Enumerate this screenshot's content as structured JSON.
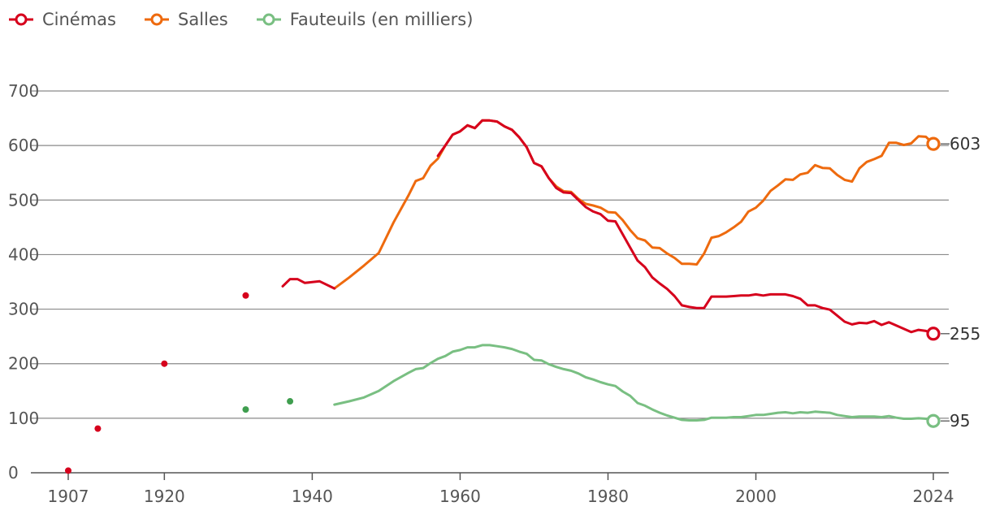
{
  "chart_data": {
    "type": "line",
    "title": "",
    "xlabel": "",
    "ylabel": "",
    "xlim": [
      1907,
      2024
    ],
    "ylim": [
      0,
      700
    ],
    "y_ticks": [
      "0",
      "100",
      "200",
      "300",
      "400",
      "500",
      "600",
      "700"
    ],
    "x_ticks": [
      "1907",
      "1920",
      "1940",
      "1960",
      "1980",
      "2000",
      "2024"
    ],
    "grid": "horizontal",
    "legend_position": "top-left",
    "colors": {
      "cinemas": "#d6001c",
      "salles": "#ee6a0e",
      "fauteuils": "#79bf82",
      "fauteuils_dot": "#3f9e4f",
      "grid": "#8a8a8a",
      "axis": "#555555"
    },
    "series": [
      {
        "key": "cinemas",
        "name": "Cinémas",
        "end_label": "255",
        "dots": [
          [
            1907,
            4
          ],
          [
            1911,
            81
          ],
          [
            1920,
            200
          ],
          [
            1931,
            325
          ]
        ],
        "line": [
          [
            1936,
            342
          ],
          [
            1937,
            355
          ],
          [
            1938,
            355
          ],
          [
            1939,
            348
          ],
          [
            1941,
            351
          ],
          [
            1943,
            338
          ],
          [
            1957,
            581
          ],
          [
            1958,
            600
          ],
          [
            1959,
            620
          ],
          [
            1960,
            626
          ],
          [
            1961,
            637
          ],
          [
            1962,
            632
          ],
          [
            1963,
            646
          ],
          [
            1964,
            646
          ],
          [
            1965,
            644
          ],
          [
            1966,
            635
          ],
          [
            1967,
            629
          ],
          [
            1968,
            615
          ],
          [
            1969,
            597
          ],
          [
            1970,
            568
          ],
          [
            1971,
            562
          ],
          [
            1972,
            540
          ],
          [
            1973,
            522
          ],
          [
            1974,
            514
          ],
          [
            1975,
            513
          ],
          [
            1976,
            500
          ],
          [
            1977,
            487
          ],
          [
            1978,
            479
          ],
          [
            1979,
            474
          ],
          [
            1980,
            462
          ],
          [
            1981,
            461
          ],
          [
            1982,
            437
          ],
          [
            1983,
            413
          ],
          [
            1984,
            389
          ],
          [
            1985,
            377
          ],
          [
            1986,
            358
          ],
          [
            1987,
            347
          ],
          [
            1988,
            337
          ],
          [
            1989,
            324
          ],
          [
            1990,
            307
          ],
          [
            1991,
            304
          ],
          [
            1992,
            302
          ],
          [
            1993,
            302
          ],
          [
            1994,
            323
          ],
          [
            1995,
            323
          ],
          [
            1996,
            323
          ],
          [
            1997,
            324
          ],
          [
            1998,
            325
          ],
          [
            1999,
            325
          ],
          [
            2000,
            327
          ],
          [
            2001,
            325
          ],
          [
            2002,
            327
          ],
          [
            2003,
            327
          ],
          [
            2004,
            327
          ],
          [
            2005,
            324
          ],
          [
            2006,
            319
          ],
          [
            2007,
            307
          ],
          [
            2008,
            307
          ],
          [
            2009,
            302
          ],
          [
            2010,
            299
          ],
          [
            2011,
            288
          ],
          [
            2012,
            277
          ],
          [
            2013,
            272
          ],
          [
            2014,
            275
          ],
          [
            2015,
            274
          ],
          [
            2016,
            278
          ],
          [
            2017,
            271
          ],
          [
            2018,
            276
          ],
          [
            2019,
            270
          ],
          [
            2020,
            264
          ],
          [
            2021,
            258
          ],
          [
            2022,
            262
          ],
          [
            2023,
            260
          ],
          [
            2024,
            255
          ]
        ]
      },
      {
        "key": "salles",
        "name": "Salles",
        "end_label": "603",
        "dots": [],
        "line": [
          [
            1943,
            338
          ],
          [
            1945,
            358
          ],
          [
            1947,
            380
          ],
          [
            1949,
            403
          ],
          [
            1951,
            459
          ],
          [
            1953,
            508
          ],
          [
            1954,
            535
          ],
          [
            1955,
            540
          ],
          [
            1956,
            563
          ],
          [
            1957,
            576
          ],
          [
            1958,
            600
          ],
          [
            1959,
            620
          ],
          [
            1960,
            626
          ],
          [
            1961,
            637
          ],
          [
            1962,
            632
          ],
          [
            1963,
            646
          ],
          [
            1964,
            646
          ],
          [
            1965,
            644
          ],
          [
            1966,
            635
          ],
          [
            1967,
            629
          ],
          [
            1968,
            615
          ],
          [
            1969,
            597
          ],
          [
            1970,
            568
          ],
          [
            1971,
            562
          ],
          [
            1972,
            540
          ],
          [
            1973,
            525
          ],
          [
            1974,
            516
          ],
          [
            1975,
            515
          ],
          [
            1976,
            502
          ],
          [
            1977,
            493
          ],
          [
            1978,
            490
          ],
          [
            1979,
            486
          ],
          [
            1980,
            478
          ],
          [
            1981,
            477
          ],
          [
            1982,
            463
          ],
          [
            1983,
            445
          ],
          [
            1984,
            430
          ],
          [
            1985,
            426
          ],
          [
            1986,
            413
          ],
          [
            1987,
            412
          ],
          [
            1988,
            402
          ],
          [
            1989,
            394
          ],
          [
            1990,
            383
          ],
          [
            1991,
            383
          ],
          [
            1992,
            382
          ],
          [
            1993,
            402
          ],
          [
            1994,
            431
          ],
          [
            1995,
            434
          ],
          [
            1996,
            441
          ],
          [
            1997,
            450
          ],
          [
            1998,
            460
          ],
          [
            1999,
            479
          ],
          [
            2000,
            486
          ],
          [
            2001,
            499
          ],
          [
            2002,
            517
          ],
          [
            2003,
            527
          ],
          [
            2004,
            538
          ],
          [
            2005,
            537
          ],
          [
            2006,
            547
          ],
          [
            2007,
            550
          ],
          [
            2008,
            564
          ],
          [
            2009,
            559
          ],
          [
            2010,
            558
          ],
          [
            2011,
            546
          ],
          [
            2012,
            537
          ],
          [
            2013,
            534
          ],
          [
            2014,
            558
          ],
          [
            2015,
            570
          ],
          [
            2016,
            575
          ],
          [
            2017,
            581
          ],
          [
            2018,
            605
          ],
          [
            2019,
            605
          ],
          [
            2020,
            601
          ],
          [
            2021,
            604
          ],
          [
            2022,
            617
          ],
          [
            2023,
            616
          ],
          [
            2024,
            603
          ]
        ]
      },
      {
        "key": "fauteuils",
        "name": "Fauteuils (en milliers)",
        "end_label": "95",
        "dots": [
          [
            1931,
            116
          ],
          [
            1937,
            131
          ]
        ],
        "line": [
          [
            1943,
            125
          ],
          [
            1945,
            131
          ],
          [
            1947,
            138
          ],
          [
            1949,
            150
          ],
          [
            1951,
            168
          ],
          [
            1953,
            183
          ],
          [
            1954,
            190
          ],
          [
            1955,
            192
          ],
          [
            1956,
            201
          ],
          [
            1957,
            209
          ],
          [
            1958,
            214
          ],
          [
            1959,
            222
          ],
          [
            1960,
            225
          ],
          [
            1961,
            230
          ],
          [
            1962,
            230
          ],
          [
            1963,
            234
          ],
          [
            1964,
            234
          ],
          [
            1965,
            232
          ],
          [
            1966,
            230
          ],
          [
            1967,
            227
          ],
          [
            1968,
            222
          ],
          [
            1969,
            218
          ],
          [
            1970,
            207
          ],
          [
            1971,
            206
          ],
          [
            1972,
            199
          ],
          [
            1973,
            194
          ],
          [
            1974,
            190
          ],
          [
            1975,
            187
          ],
          [
            1976,
            182
          ],
          [
            1977,
            175
          ],
          [
            1978,
            171
          ],
          [
            1979,
            166
          ],
          [
            1980,
            162
          ],
          [
            1981,
            159
          ],
          [
            1982,
            149
          ],
          [
            1983,
            141
          ],
          [
            1984,
            128
          ],
          [
            1985,
            123
          ],
          [
            1986,
            116
          ],
          [
            1987,
            110
          ],
          [
            1988,
            105
          ],
          [
            1989,
            101
          ],
          [
            1990,
            97
          ],
          [
            1991,
            96
          ],
          [
            1992,
            96
          ],
          [
            1993,
            97
          ],
          [
            1994,
            101
          ],
          [
            1995,
            101
          ],
          [
            1996,
            101
          ],
          [
            1997,
            102
          ],
          [
            1998,
            102
          ],
          [
            1999,
            104
          ],
          [
            2000,
            106
          ],
          [
            2001,
            106
          ],
          [
            2002,
            108
          ],
          [
            2003,
            110
          ],
          [
            2004,
            111
          ],
          [
            2005,
            109
          ],
          [
            2006,
            111
          ],
          [
            2007,
            110
          ],
          [
            2008,
            112
          ],
          [
            2009,
            111
          ],
          [
            2010,
            110
          ],
          [
            2011,
            106
          ],
          [
            2012,
            104
          ],
          [
            2013,
            102
          ],
          [
            2014,
            103
          ],
          [
            2015,
            103
          ],
          [
            2016,
            103
          ],
          [
            2017,
            102
          ],
          [
            2018,
            104
          ],
          [
            2019,
            101
          ],
          [
            2020,
            99
          ],
          [
            2021,
            99
          ],
          [
            2022,
            100
          ],
          [
            2023,
            99
          ],
          [
            2024,
            95
          ]
        ]
      }
    ]
  }
}
